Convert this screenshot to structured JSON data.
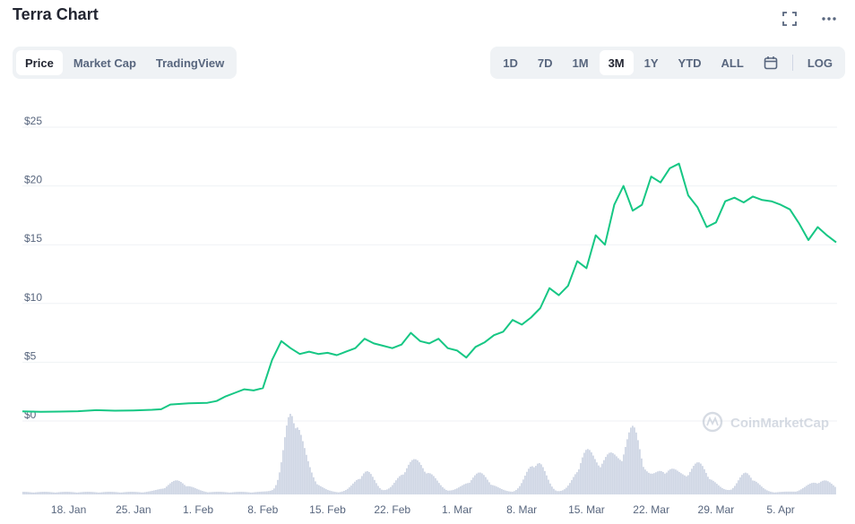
{
  "header": {
    "title": "Terra Chart",
    "expand_icon": "expand-icon",
    "more_icon": "more-dots-icon"
  },
  "chart_tabs": [
    {
      "label": "Price",
      "active": true
    },
    {
      "label": "Market Cap",
      "active": false
    },
    {
      "label": "TradingView",
      "active": false
    }
  ],
  "range_tabs": [
    {
      "label": "1D",
      "active": false
    },
    {
      "label": "7D",
      "active": false
    },
    {
      "label": "1M",
      "active": false
    },
    {
      "label": "3M",
      "active": true
    },
    {
      "label": "1Y",
      "active": false
    },
    {
      "label": "YTD",
      "active": false
    },
    {
      "label": "ALL",
      "active": false
    }
  ],
  "calendar_icon": "calendar-icon",
  "log_label": "LOG",
  "watermark": "CoinMarketCap",
  "colors": {
    "line": "#16c784",
    "volume": "#cfd6e4",
    "grid": "#eff2f5",
    "text": "#58667e"
  },
  "chart_data": {
    "type": "line",
    "title": "",
    "xlabel": "",
    "ylabel": "",
    "ylim": [
      0,
      25
    ],
    "y_ticks": [
      "$0",
      "$5",
      "$10",
      "$15",
      "$20",
      "$25"
    ],
    "x_ticks": [
      "18. Jan",
      "25. Jan",
      "1. Feb",
      "8. Feb",
      "15. Feb",
      "22. Feb",
      "1. Mar",
      "8. Mar",
      "15. Mar",
      "22. Mar",
      "29. Mar",
      "5. Apr"
    ],
    "x_range": [
      "2021-01-13",
      "2021-04-11"
    ],
    "grid": true,
    "series": [
      {
        "points": [
          [
            "2021-01-13",
            0.82
          ],
          [
            "2021-01-15",
            0.78
          ],
          [
            "2021-01-17",
            0.8
          ],
          [
            "2021-01-19",
            0.83
          ],
          [
            "2021-01-21",
            0.92
          ],
          [
            "2021-01-23",
            0.88
          ],
          [
            "2021-01-25",
            0.9
          ],
          [
            "2021-01-27",
            0.95
          ],
          [
            "2021-01-28",
            1.0
          ],
          [
            "2021-01-29",
            1.4
          ],
          [
            "2021-01-31",
            1.5
          ],
          [
            "2021-02-02",
            1.55
          ],
          [
            "2021-02-03",
            1.7
          ],
          [
            "2021-02-04",
            2.1
          ],
          [
            "2021-02-05",
            2.4
          ],
          [
            "2021-02-06",
            2.7
          ],
          [
            "2021-02-07",
            2.6
          ],
          [
            "2021-02-08",
            2.8
          ],
          [
            "2021-02-09",
            5.2
          ],
          [
            "2021-02-10",
            6.8
          ],
          [
            "2021-02-11",
            6.2
          ],
          [
            "2021-02-12",
            5.7
          ],
          [
            "2021-02-13",
            5.9
          ],
          [
            "2021-02-14",
            5.7
          ],
          [
            "2021-02-15",
            5.8
          ],
          [
            "2021-02-16",
            5.6
          ],
          [
            "2021-02-17",
            5.9
          ],
          [
            "2021-02-18",
            6.2
          ],
          [
            "2021-02-19",
            7.0
          ],
          [
            "2021-02-20",
            6.6
          ],
          [
            "2021-02-21",
            6.4
          ],
          [
            "2021-02-22",
            6.2
          ],
          [
            "2021-02-23",
            6.5
          ],
          [
            "2021-02-24",
            7.5
          ],
          [
            "2021-02-25",
            6.8
          ],
          [
            "2021-02-26",
            6.6
          ],
          [
            "2021-02-27",
            7.0
          ],
          [
            "2021-02-28",
            6.2
          ],
          [
            "2021-03-01",
            6.0
          ],
          [
            "2021-03-02",
            5.4
          ],
          [
            "2021-03-03",
            6.3
          ],
          [
            "2021-03-04",
            6.7
          ],
          [
            "2021-03-05",
            7.3
          ],
          [
            "2021-03-06",
            7.6
          ],
          [
            "2021-03-07",
            8.6
          ],
          [
            "2021-03-08",
            8.2
          ],
          [
            "2021-03-09",
            8.8
          ],
          [
            "2021-03-10",
            9.6
          ],
          [
            "2021-03-11",
            11.3
          ],
          [
            "2021-03-12",
            10.7
          ],
          [
            "2021-03-13",
            11.5
          ],
          [
            "2021-03-14",
            13.6
          ],
          [
            "2021-03-15",
            13.0
          ],
          [
            "2021-03-16",
            15.8
          ],
          [
            "2021-03-17",
            15.0
          ],
          [
            "2021-03-18",
            18.4
          ],
          [
            "2021-03-19",
            20.0
          ],
          [
            "2021-03-20",
            17.9
          ],
          [
            "2021-03-21",
            18.4
          ],
          [
            "2021-03-22",
            20.8
          ],
          [
            "2021-03-23",
            20.3
          ],
          [
            "2021-03-24",
            21.5
          ],
          [
            "2021-03-25",
            21.9
          ],
          [
            "2021-03-26",
            19.2
          ],
          [
            "2021-03-27",
            18.2
          ],
          [
            "2021-03-28",
            16.5
          ],
          [
            "2021-03-29",
            16.9
          ],
          [
            "2021-03-30",
            18.7
          ],
          [
            "2021-03-31",
            19.0
          ],
          [
            "2021-04-01",
            18.6
          ],
          [
            "2021-04-02",
            19.1
          ],
          [
            "2021-04-03",
            18.8
          ],
          [
            "2021-04-04",
            18.7
          ],
          [
            "2021-04-05",
            18.4
          ],
          [
            "2021-04-06",
            18.0
          ],
          [
            "2021-04-07",
            16.8
          ],
          [
            "2021-04-08",
            15.4
          ],
          [
            "2021-04-09",
            16.5
          ],
          [
            "2021-04-10",
            15.8
          ],
          [
            "2021-04-11",
            15.2
          ]
        ]
      }
    ]
  }
}
